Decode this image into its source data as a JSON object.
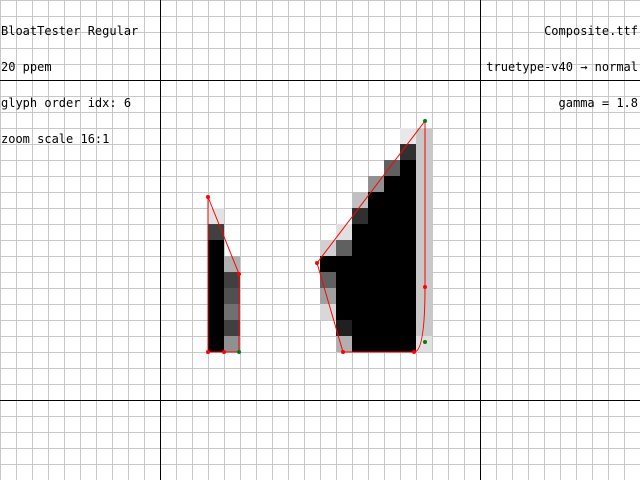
{
  "window": {
    "font_name": "BloatTester Regular",
    "ppem": "20 ppem",
    "glyph_index": "glyph order idx: 6",
    "zoom": "zoom scale 16:1",
    "file_name": "Composite.ttf",
    "hinting_mode": "truetype-v40 → normal",
    "gamma": "gamma = 1.8"
  },
  "colors": {
    "background": "#ffffff",
    "grid": "#c8c8c8",
    "axis": "#000000",
    "outline": "#ff0000",
    "on_curve_point": "#ff0000",
    "off_curve_point": "#008000"
  },
  "glyph": {
    "pixels": [
      [
        "#dcdcdc",
        "#dcdcdc",
        "#dcdcdc",
        "#dcdcdc"
      ],
      [
        "#202020",
        "#404040",
        "#606060",
        "#a0a0a0"
      ]
    ]
  }
}
